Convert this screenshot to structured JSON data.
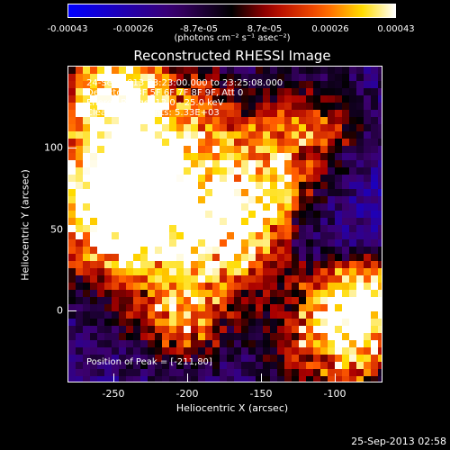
{
  "colorbar": {
    "ticks": [
      "-0.00043",
      "-0.00026",
      "-8.7e-05",
      "8.7e-05",
      "0.00026",
      "0.00043"
    ],
    "units": "(photons cm⁻² s⁻¹ asec⁻²)"
  },
  "title": "Reconstructed RHESSI Image",
  "annotations": {
    "time": "24-Sep-2013 23:23:00.000 to 23:25:08.000",
    "detectors": "Detectors: 3F 5F 6F 7F 8F 9F, Att 0",
    "energy": "Energy Range: 12.0 - 25.0 keV",
    "method": "Clean     Total counts: 5.33E+03",
    "peak": "Position of Peak = [-211,80]"
  },
  "x_axis": {
    "label": "Heliocentric X (arcsec)",
    "ticks": [
      "-250",
      "-200",
      "-150",
      "-100"
    ]
  },
  "y_axis": {
    "label": "Heliocentric Y (arcsec)",
    "ticks": [
      "0",
      "50",
      "100"
    ]
  },
  "timestamp": "25-Sep-2013 02:58"
}
